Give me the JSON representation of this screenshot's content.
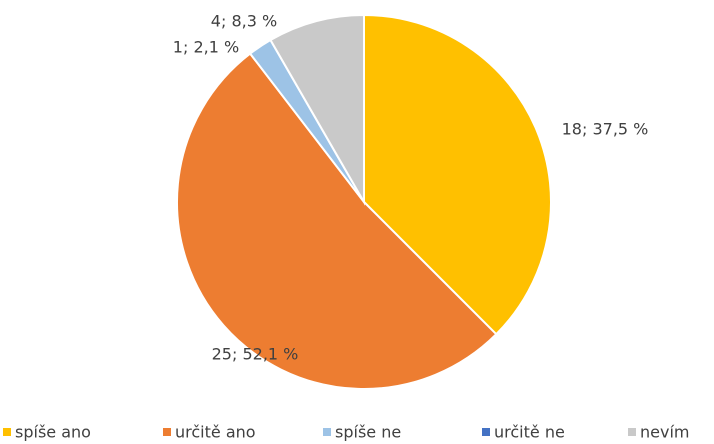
{
  "chart_data": {
    "type": "pie",
    "categories": [
      "spíše ano",
      "určitě ano",
      "spíše ne",
      "určitě ne",
      "nevím"
    ],
    "values": [
      18,
      25,
      1,
      0,
      4
    ],
    "value_labels": [
      "18; 37,5 %",
      "25; 52,1 %",
      "1; 2,1 %",
      null,
      "4; 8,3 %"
    ],
    "colors": [
      "#ffc000",
      "#ed7d31",
      "#9dc3e6",
      "#4472c4",
      "#c9c9c9"
    ],
    "legend": "bottom"
  }
}
